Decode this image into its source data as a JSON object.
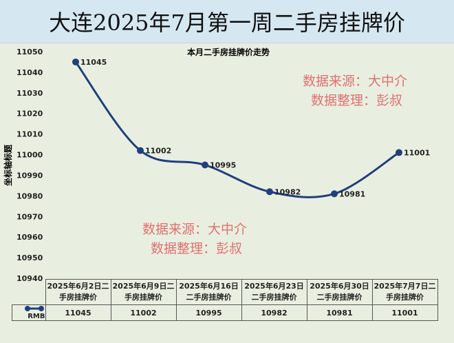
{
  "title": "大连2025年7月第一周二手房挂牌价",
  "watermarks": [
    "数据来源：大中介",
    "数据整理：彭叔"
  ],
  "chart_data": {
    "type": "line",
    "title": "本月二手房挂牌价走势",
    "ylabel": "坐标轴标题",
    "xlabel": "",
    "ylim": [
      10940,
      11050
    ],
    "yticks": [
      11050,
      11040,
      11030,
      11020,
      11010,
      11000,
      10990,
      10980,
      10970,
      10960,
      10950,
      10940
    ],
    "categories": [
      "2025年6月2日二手房挂牌价",
      "2025年6月9日二手房挂牌价",
      "2025年6月16日二手房挂牌价",
      "2025年6月23日二手房挂牌价",
      "2025年6月30日二手房挂牌价",
      "2025年7月7日二手房挂牌价"
    ],
    "series": [
      {
        "name": "RMB",
        "values": [
          11045,
          11002,
          10995,
          10982,
          10981,
          11001
        ],
        "color": "#1f3f7f"
      }
    ],
    "smooth": true,
    "grid": false,
    "legend": "data-table"
  }
}
